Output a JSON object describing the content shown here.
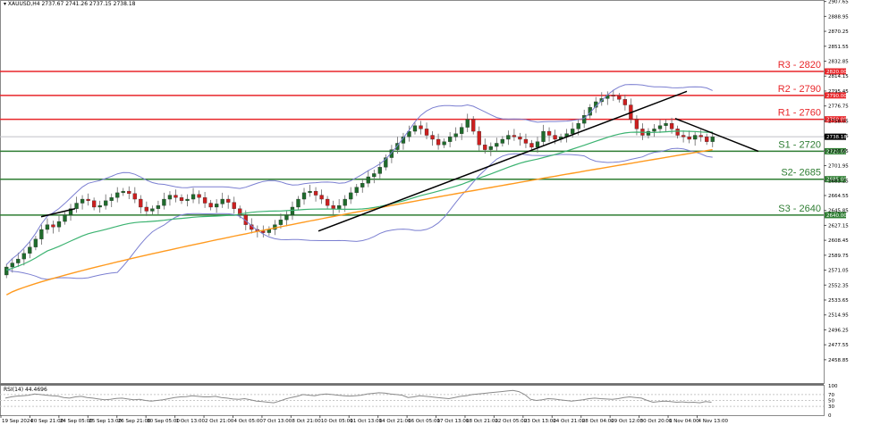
{
  "header": {
    "symbol": "XAUUSD,H4",
    "ohlc": "2737.67 2741.26 2737.15 2738.18",
    "title_full": "XAUUSD,H4  2737.67 2741.26 2737.15 2738.18"
  },
  "rsi": {
    "label": "RSI(14) 44.4696",
    "axis_ticks": [
      "100",
      "70",
      "50",
      "30",
      "0"
    ]
  },
  "colors": {
    "resistance": "#e8262a",
    "support": "#2e7d32",
    "bull_candle": "#1f6b2c",
    "bear_candle": "#cc1f1f",
    "bollinger": "#7b7fd1",
    "ma_green": "#3cb371",
    "ma_orange": "#ff9a1f",
    "trendline": "#000000",
    "current_price_tag": "#000000",
    "rsi_line": "#8a8a8a"
  },
  "chart_data": {
    "type": "candlestick",
    "title": "XAUUSD,H4",
    "instrument": "XAUUSD",
    "timeframe": "H4",
    "last_ohlc": {
      "open": 2737.67,
      "high": 2741.26,
      "low": 2737.15,
      "close": 2738.18
    },
    "current_price": "2738.18",
    "y_axis": {
      "ticks": [
        "2907.65",
        "2888.95",
        "2870.25",
        "2851.55",
        "2832.85",
        "2814.15",
        "2795.45",
        "2776.75",
        "2758.05",
        "2739.35",
        "2720.65",
        "2701.95",
        "2683.25",
        "2664.55",
        "2645.85",
        "2627.15",
        "2608.45",
        "2589.75",
        "2571.05",
        "2552.35",
        "2533.65",
        "2514.95",
        "2496.25",
        "2477.55",
        "2458.85"
      ],
      "ylim": [
        2458.85,
        2907.65
      ]
    },
    "x_axis": {
      "ticks": [
        "19 Sep 2024",
        "20 Sep 21:00",
        "24 Sep 05:00",
        "25 Sep 13:00",
        "26 Sep 21:00",
        "30 Sep 05:00",
        "1 Oct 13:00",
        "2 Oct 21:00",
        "4 Oct 05:00",
        "7 Oct 13:00",
        "8 Oct 21:00",
        "10 Oct 05:00",
        "11 Oct 13:00",
        "14 Oct 21:00",
        "16 Oct 05:00",
        "17 Oct 13:00",
        "18 Oct 21:00",
        "22 Oct 05:00",
        "23 Oct 13:00",
        "24 Oct 21:00",
        "28 Oct 04:00",
        "29 Oct 12:00",
        "30 Oct 20:00",
        "1 Nov 04:00",
        "4 Nov 13:00"
      ]
    },
    "levels": [
      {
        "name": "R3",
        "label": "R3 - 2820",
        "value": 2820,
        "tag": "2820.00",
        "type": "resistance"
      },
      {
        "name": "R2",
        "label": "R2 - 2790",
        "value": 2790,
        "tag": "2790.00",
        "type": "resistance"
      },
      {
        "name": "R1",
        "label": "R1 - 2760",
        "value": 2760,
        "tag": "2760.00",
        "type": "resistance"
      },
      {
        "name": "S1",
        "label": "S1 - 2720",
        "value": 2720,
        "tag": "2720.00",
        "type": "support"
      },
      {
        "name": "S2",
        "label": "S2- 2685",
        "value": 2685,
        "tag": "2685.00",
        "type": "support"
      },
      {
        "name": "S3",
        "label": "S3 - 2640",
        "value": 2640,
        "tag": "2640.00",
        "type": "support"
      }
    ],
    "indicators": [
      "Bollinger Bands",
      "Moving Average (green)",
      "Moving Average (orange)",
      "RSI(14)"
    ],
    "rsi_value": 44.4696,
    "close_series_approx": [
      2575,
      2580,
      2585,
      2592,
      2600,
      2610,
      2622,
      2628,
      2625,
      2632,
      2640,
      2648,
      2655,
      2660,
      2658,
      2650,
      2652,
      2658,
      2662,
      2668,
      2670,
      2667,
      2660,
      2650,
      2645,
      2648,
      2652,
      2660,
      2665,
      2662,
      2658,
      2660,
      2666,
      2662,
      2655,
      2650,
      2654,
      2660,
      2656,
      2648,
      2640,
      2628,
      2622,
      2620,
      2618,
      2622,
      2628,
      2634,
      2640,
      2650,
      2660,
      2668,
      2670,
      2665,
      2660,
      2652,
      2648,
      2652,
      2660,
      2668,
      2675,
      2680,
      2688,
      2692,
      2700,
      2712,
      2722,
      2730,
      2738,
      2745,
      2752,
      2748,
      2740,
      2735,
      2728,
      2732,
      2738,
      2742,
      2750,
      2760,
      2745,
      2728,
      2722,
      2726,
      2730,
      2735,
      2740,
      2738,
      2735,
      2730,
      2725,
      2732,
      2745,
      2740,
      2735,
      2738,
      2742,
      2748,
      2755,
      2765,
      2775,
      2782,
      2786,
      2790,
      2789,
      2785,
      2778,
      2760,
      2748,
      2740,
      2745,
      2748,
      2752,
      2755,
      2748,
      2740,
      2738,
      2735,
      2740,
      2738,
      2732,
      2738
    ],
    "rsi_series_approx": [
      58,
      62,
      65,
      66,
      68,
      72,
      70,
      68,
      66,
      65,
      60,
      58,
      62,
      64,
      60,
      58,
      55,
      52,
      54,
      57,
      58,
      55,
      52,
      54,
      50,
      48,
      50,
      52,
      56,
      60,
      62,
      63,
      66,
      64,
      62,
      62,
      64,
      60,
      58,
      55,
      54,
      56,
      52,
      48,
      46,
      44,
      42,
      48,
      55,
      60,
      64,
      70,
      68,
      66,
      70,
      72,
      70,
      68,
      66,
      65,
      66,
      68,
      72,
      74,
      76,
      75,
      72,
      70,
      68,
      60,
      62,
      66,
      64,
      62,
      60,
      58,
      56,
      60,
      64,
      66,
      70,
      72,
      74,
      76,
      78,
      80,
      82,
      84,
      80,
      70,
      54,
      50,
      52,
      56,
      55,
      52,
      50,
      48,
      50,
      52,
      56,
      58,
      56,
      55,
      54,
      56,
      60,
      62,
      60,
      58,
      50,
      44,
      46,
      48,
      46,
      44,
      45,
      43,
      44,
      42,
      46,
      44
    ]
  }
}
